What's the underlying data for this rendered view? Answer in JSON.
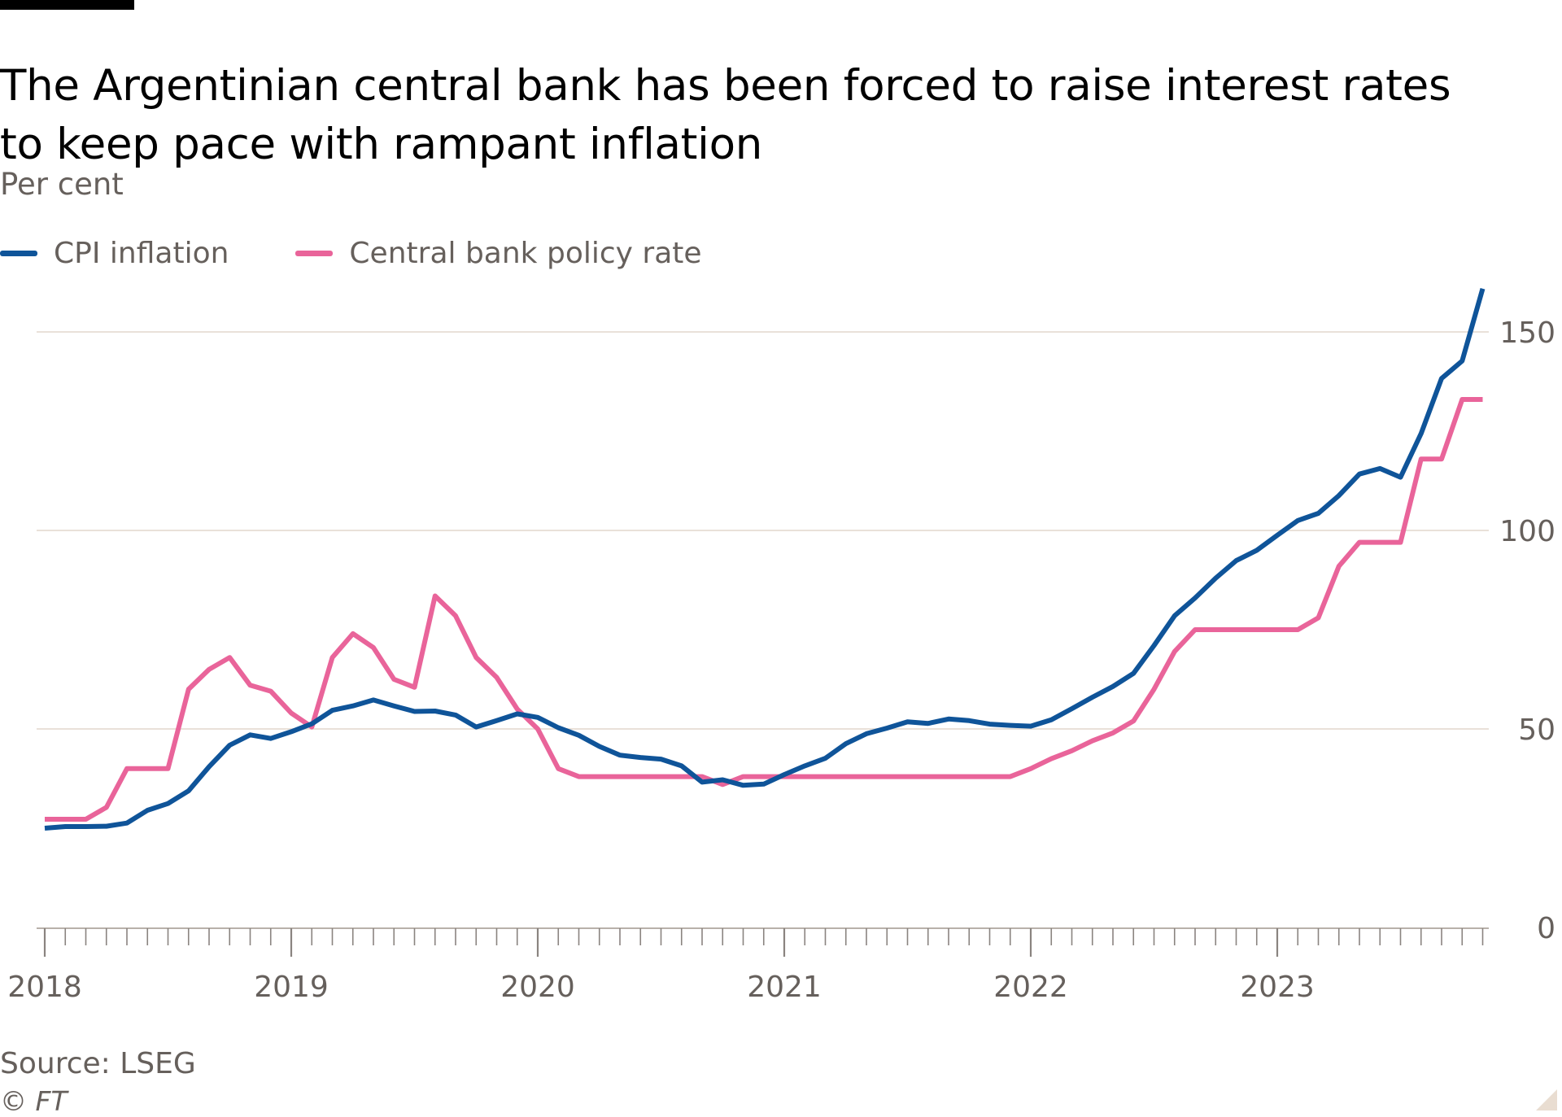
{
  "header": {
    "title": "The Argentinian central bank has been forced to raise interest rates to keep pace with rampant inflation",
    "subtitle": "Per cent"
  },
  "footer": {
    "source": "Source: LSEG",
    "credit": "© FT"
  },
  "colors": {
    "cpi": "#0f5499",
    "policy": "#e9649a",
    "gridline": "#e9e1d9",
    "axis_text": "#66605c",
    "tick": "#8a8480"
  },
  "chart_data": {
    "type": "line",
    "title": "The Argentinian central bank has been forced to raise interest rates to keep pace with rampant inflation",
    "ylabel": "Per cent",
    "xlabel": "",
    "x_start": "2018-01",
    "x_ticks": [
      "2018",
      "2019",
      "2020",
      "2021",
      "2022",
      "2023"
    ],
    "y_ticks": [
      0,
      50,
      100,
      150
    ],
    "ylim": [
      0,
      150
    ],
    "y_axis_side": "right",
    "grid": "horizontal",
    "legend_position": "top-left",
    "series": [
      {
        "name": "CPI inflation",
        "color": "#0f5499",
        "values": [
          25.0,
          25.4,
          25.4,
          25.5,
          26.3,
          29.5,
          31.2,
          34.4,
          40.5,
          45.9,
          48.5,
          47.6,
          49.3,
          51.3,
          54.7,
          55.8,
          57.3,
          55.8,
          54.4,
          54.5,
          53.5,
          50.5,
          52.1,
          53.8,
          52.9,
          50.3,
          48.4,
          45.6,
          43.4,
          42.8,
          42.4,
          40.7,
          36.6,
          37.2,
          35.8,
          36.1,
          38.5,
          40.7,
          42.6,
          46.3,
          48.8,
          50.2,
          51.8,
          51.4,
          52.5,
          52.1,
          51.2,
          50.9,
          50.7,
          52.3,
          55.1,
          58.0,
          60.7,
          64.0,
          71.0,
          78.5,
          83.0,
          88.0,
          92.4,
          95.0,
          98.8,
          102.5,
          104.3,
          108.8,
          114.2,
          115.6,
          113.4,
          124.4,
          138.3,
          142.7,
          160.9
        ]
      },
      {
        "name": "Central bank policy rate",
        "color": "#e9649a",
        "values": [
          27.25,
          27.25,
          27.25,
          30.25,
          40.0,
          40.0,
          40.0,
          60.0,
          65.0,
          68.0,
          61.0,
          59.5,
          54.0,
          50.5,
          68.0,
          74.0,
          70.5,
          62.5,
          60.5,
          83.5,
          78.5,
          68.0,
          63.0,
          55.0,
          50.0,
          40.0,
          38.0,
          38.0,
          38.0,
          38.0,
          38.0,
          38.0,
          38.0,
          36.0,
          38.0,
          38.0,
          38.0,
          38.0,
          38.0,
          38.0,
          38.0,
          38.0,
          38.0,
          38.0,
          38.0,
          38.0,
          38.0,
          38.0,
          40.0,
          42.5,
          44.5,
          47.0,
          49.0,
          52.0,
          60.0,
          69.5,
          75.0,
          75.0,
          75.0,
          75.0,
          75.0,
          75.0,
          78.0,
          91.0,
          97.0,
          97.0,
          97.0,
          118.0,
          118.0,
          133.0,
          133.0
        ]
      }
    ]
  }
}
